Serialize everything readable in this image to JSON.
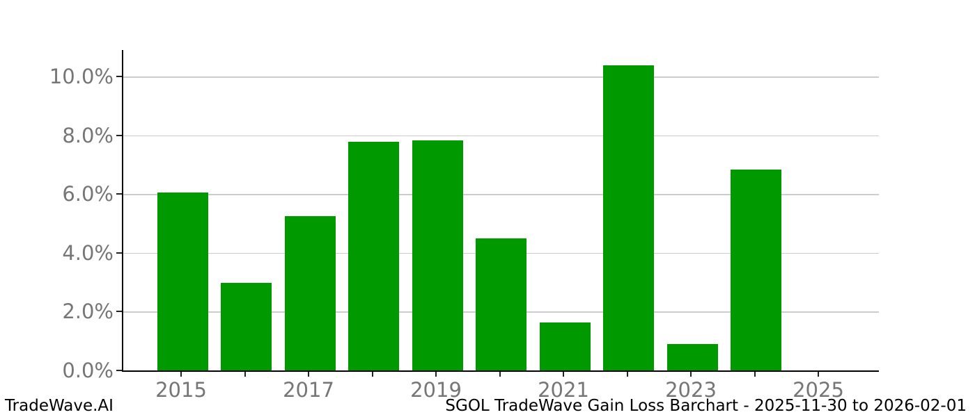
{
  "chart_data": {
    "type": "bar",
    "categories": [
      "2015",
      "2016",
      "2017",
      "2018",
      "2019",
      "2020",
      "2021",
      "2022",
      "2023",
      "2024",
      "2025"
    ],
    "values": [
      6.05,
      2.99,
      5.25,
      7.79,
      7.82,
      4.49,
      1.64,
      10.39,
      0.9,
      6.84,
      0.0
    ],
    "title": "",
    "xlabel": "",
    "ylabel": "",
    "ylim": [
      0,
      10.9
    ],
    "y_ticks": [
      0,
      2,
      4,
      6,
      8,
      10
    ],
    "y_tick_labels": [
      "0.0%",
      "2.0%",
      "4.0%",
      "6.0%",
      "8.0%",
      "10.0%"
    ],
    "x_tick_labels": [
      "2015",
      "2017",
      "2019",
      "2021",
      "2023",
      "2025"
    ],
    "grid": true,
    "legend": "none",
    "bar_color": "#009900",
    "grid_color": "#cccccc",
    "tick_label_color": "#767676",
    "axis_color": "#000000"
  },
  "footer": {
    "left": "TradeWave.AI",
    "right": "SGOL TradeWave Gain Loss Barchart - 2025-11-30 to 2026-02-01"
  }
}
